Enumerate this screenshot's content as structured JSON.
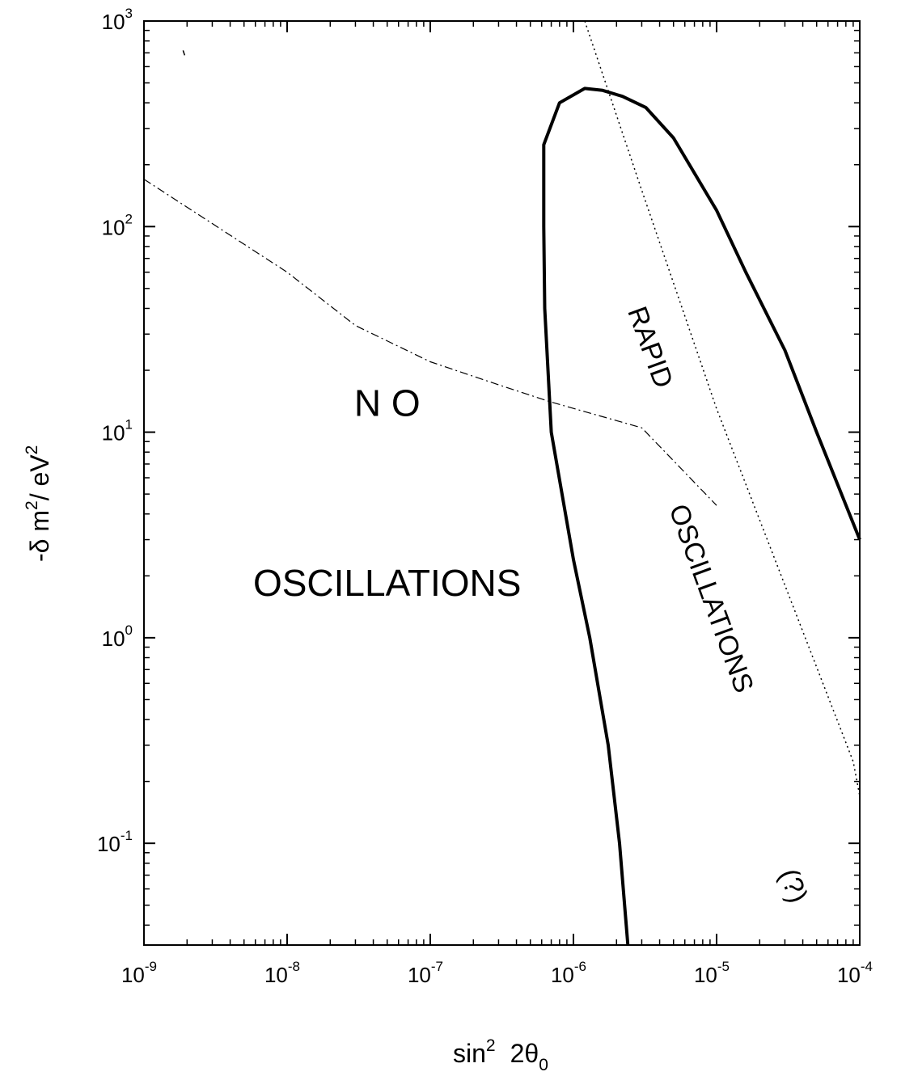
{
  "chart_data": {
    "type": "line",
    "xscale": "log",
    "yscale": "log",
    "xlim": [
      1e-09,
      0.0001
    ],
    "ylim": [
      0.032,
      1000
    ],
    "x_ticks": [
      {
        "base": "10",
        "exp": "-9"
      },
      {
        "base": "10",
        "exp": "-8"
      },
      {
        "base": "10",
        "exp": "-7"
      },
      {
        "base": "10",
        "exp": "-6"
      },
      {
        "base": "10",
        "exp": "-5"
      },
      {
        "base": "10",
        "exp": "-4"
      }
    ],
    "y_ticks": [
      {
        "base": "10",
        "exp": "-1"
      },
      {
        "base": "10",
        "exp": "0"
      },
      {
        "base": "10",
        "exp": "1"
      },
      {
        "base": "10",
        "exp": "2"
      },
      {
        "base": "10",
        "exp": "3"
      }
    ],
    "xlabel": {
      "text": "sin",
      "sup": "2",
      "rest": "2θ",
      "sub": "0"
    },
    "ylabel": {
      "p1": "-δ m",
      "sup1": "2",
      "p2": "/ eV",
      "sup2": "2"
    },
    "grid": false,
    "series": [
      {
        "style": "thick-solid",
        "color": "#000000",
        "x": [
          2.4e-06,
          2.1e-06,
          1.75e-06,
          1.3e-06,
          1e-06,
          7e-07,
          6.3e-07,
          6.2e-07,
          6.2e-07,
          8e-07,
          1.2e-06,
          1.6e-06,
          2.2e-06,
          3.2e-06,
          5e-06,
          1e-05,
          1.6e-05,
          3e-05,
          5e-05,
          0.0001
        ],
        "y": [
          0.032,
          0.1,
          0.3,
          1.0,
          2.4,
          10,
          40,
          100,
          250,
          400,
          470,
          460,
          430,
          380,
          270,
          120,
          60,
          25,
          10,
          3
        ]
      },
      {
        "style": "dotted",
        "color": "#000000",
        "x": [
          1.2e-06,
          3e-06,
          1e-05,
          3e-05,
          9e-05,
          0.0001
        ],
        "y": [
          1000,
          150,
          13,
          1.8,
          0.25,
          0.17
        ]
      },
      {
        "style": "dash-dot",
        "color": "#000000",
        "x": [
          1e-09,
          1e-08,
          3e-08,
          1e-07,
          3e-07,
          7e-07,
          3e-06,
          1e-05
        ],
        "y": [
          170,
          60,
          33,
          22,
          17,
          14,
          10.5,
          4.4
        ]
      }
    ],
    "stray_mark": {
      "x": 1.9e-09,
      "y": 700
    },
    "annotations": [
      {
        "id": "no",
        "text": "N O",
        "x": 5e-08,
        "y": 12
      },
      {
        "id": "oscillations-left",
        "text": "OSCILLATIONS",
        "x": 5e-08,
        "y": 1.6
      },
      {
        "id": "rapid",
        "text": "RAPID",
        "x": 3e-06,
        "y": 25,
        "rotation": 70
      },
      {
        "id": "oscillations-right",
        "text": "OSCILLATIONS",
        "x": 8e-06,
        "y": 1.5,
        "rotation": 70
      },
      {
        "id": "question",
        "text": "(?)",
        "x": 3e-05,
        "y": 0.06,
        "rotation": 70
      }
    ]
  }
}
